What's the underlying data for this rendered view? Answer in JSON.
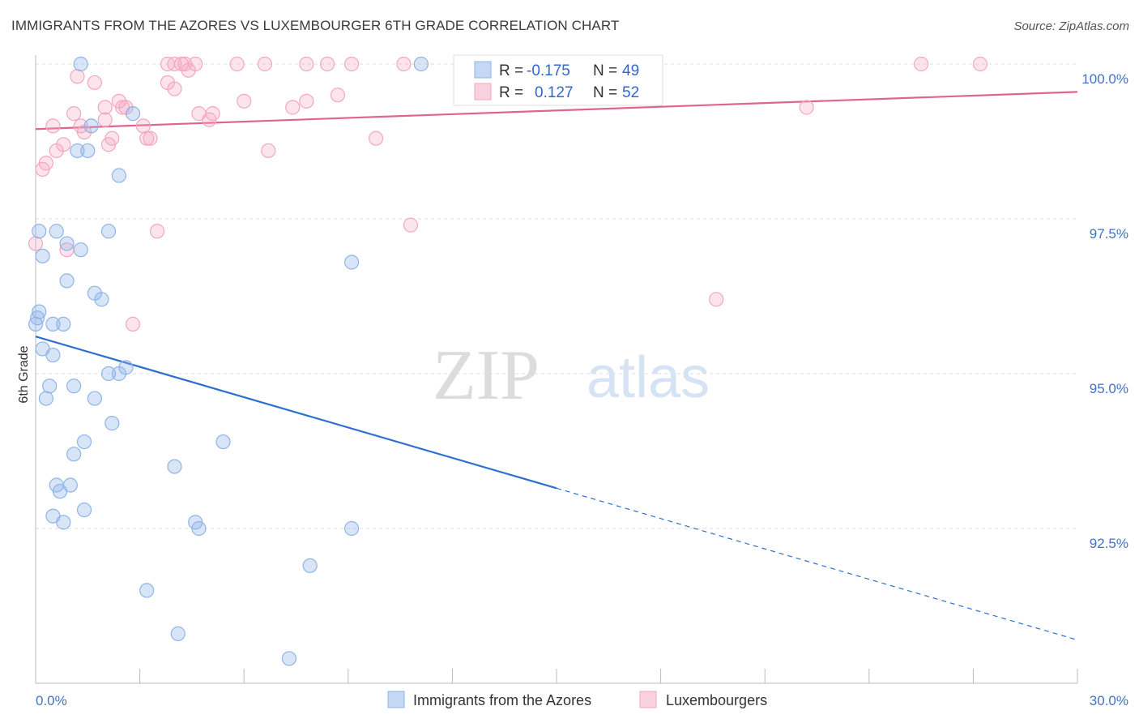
{
  "title": "IMMIGRANTS FROM THE AZORES VS LUXEMBOURGER 6TH GRADE CORRELATION CHART",
  "source": "Source: ZipAtlas.com",
  "watermark": {
    "zip": "ZIP",
    "atlas": "atlas"
  },
  "chart_data": {
    "type": "scatter",
    "ylabel": "6th Grade",
    "xlim": [
      0,
      30
    ],
    "ylim": [
      90.0,
      100.4
    ],
    "x_tick_labels": [
      "0.0%",
      "30.0%"
    ],
    "y_ticks": [
      {
        "value": 100.0,
        "label": "100.0%"
      },
      {
        "value": 97.5,
        "label": "97.5%"
      },
      {
        "value": 95.0,
        "label": "95.0%"
      },
      {
        "value": 92.5,
        "label": "92.5%"
      }
    ],
    "series": [
      {
        "name": "Immigrants from the Azores",
        "color": "#8fb4e8",
        "line_color": "#2e6fd0",
        "R": "-0.175",
        "N": "49",
        "trend": {
          "x0": 0.0,
          "y0": 95.6,
          "x_solid_end": 15.0,
          "x1": 30.0,
          "y1": 90.7
        },
        "points": [
          [
            1.3,
            100.0
          ],
          [
            11.1,
            100.0
          ],
          [
            1.6,
            99.0
          ],
          [
            2.8,
            99.2
          ],
          [
            1.2,
            98.6
          ],
          [
            1.5,
            98.6
          ],
          [
            2.4,
            98.2
          ],
          [
            0.1,
            97.3
          ],
          [
            0.6,
            97.3
          ],
          [
            2.1,
            97.3
          ],
          [
            0.9,
            97.1
          ],
          [
            1.3,
            97.0
          ],
          [
            0.2,
            96.9
          ],
          [
            9.1,
            96.8
          ],
          [
            0.9,
            96.5
          ],
          [
            1.7,
            96.3
          ],
          [
            1.9,
            96.2
          ],
          [
            0.1,
            96.0
          ],
          [
            0.0,
            95.8
          ],
          [
            0.5,
            95.8
          ],
          [
            0.8,
            95.8
          ],
          [
            0.2,
            95.4
          ],
          [
            0.5,
            95.3
          ],
          [
            2.1,
            95.0
          ],
          [
            2.4,
            95.0
          ],
          [
            2.6,
            95.1
          ],
          [
            0.4,
            94.8
          ],
          [
            1.1,
            94.8
          ],
          [
            0.3,
            94.6
          ],
          [
            1.7,
            94.6
          ],
          [
            2.2,
            94.2
          ],
          [
            1.4,
            93.9
          ],
          [
            1.1,
            93.7
          ],
          [
            5.4,
            93.9
          ],
          [
            4.0,
            93.5
          ],
          [
            0.6,
            93.2
          ],
          [
            1.0,
            93.2
          ],
          [
            0.7,
            93.1
          ],
          [
            0.5,
            92.7
          ],
          [
            1.4,
            92.8
          ],
          [
            0.8,
            92.6
          ],
          [
            4.6,
            92.6
          ],
          [
            4.7,
            92.5
          ],
          [
            9.1,
            92.5
          ],
          [
            7.9,
            91.9
          ],
          [
            3.2,
            91.5
          ],
          [
            4.1,
            90.8
          ],
          [
            7.3,
            90.4
          ],
          [
            0.05,
            95.9
          ]
        ]
      },
      {
        "name": "Luxembourgers",
        "color": "#f4a6c0",
        "line_color": "#e0648f",
        "R": "0.127",
        "N": "52",
        "trend": {
          "x0": 0.0,
          "y0": 98.95,
          "x1": 30.0,
          "y1": 99.55
        },
        "points": [
          [
            3.8,
            100.0
          ],
          [
            4.2,
            100.0
          ],
          [
            4.3,
            100.0
          ],
          [
            4.0,
            100.0
          ],
          [
            4.6,
            100.0
          ],
          [
            5.8,
            100.0
          ],
          [
            6.6,
            100.0
          ],
          [
            7.8,
            100.0
          ],
          [
            8.4,
            100.0
          ],
          [
            9.1,
            100.0
          ],
          [
            10.6,
            100.0
          ],
          [
            25.5,
            100.0
          ],
          [
            27.2,
            100.0
          ],
          [
            4.4,
            99.9
          ],
          [
            1.2,
            99.8
          ],
          [
            3.8,
            99.7
          ],
          [
            1.7,
            99.7
          ],
          [
            4.0,
            99.6
          ],
          [
            8.7,
            99.5
          ],
          [
            6.0,
            99.4
          ],
          [
            7.8,
            99.4
          ],
          [
            2.4,
            99.4
          ],
          [
            2.0,
            99.3
          ],
          [
            2.6,
            99.3
          ],
          [
            2.5,
            99.3
          ],
          [
            7.4,
            99.3
          ],
          [
            1.1,
            99.2
          ],
          [
            4.7,
            99.2
          ],
          [
            5.1,
            99.2
          ],
          [
            22.2,
            99.3
          ],
          [
            5.0,
            99.1
          ],
          [
            2.0,
            99.1
          ],
          [
            0.5,
            99.0
          ],
          [
            3.1,
            99.0
          ],
          [
            1.3,
            99.0
          ],
          [
            1.4,
            98.9
          ],
          [
            3.2,
            98.8
          ],
          [
            3.3,
            98.8
          ],
          [
            9.8,
            98.8
          ],
          [
            2.2,
            98.8
          ],
          [
            0.8,
            98.7
          ],
          [
            2.1,
            98.7
          ],
          [
            0.6,
            98.6
          ],
          [
            6.7,
            98.6
          ],
          [
            0.3,
            98.4
          ],
          [
            0.2,
            98.3
          ],
          [
            10.8,
            97.4
          ],
          [
            3.5,
            97.3
          ],
          [
            0.0,
            97.1
          ],
          [
            0.9,
            97.0
          ],
          [
            19.6,
            96.2
          ],
          [
            2.8,
            95.8
          ]
        ]
      }
    ]
  }
}
